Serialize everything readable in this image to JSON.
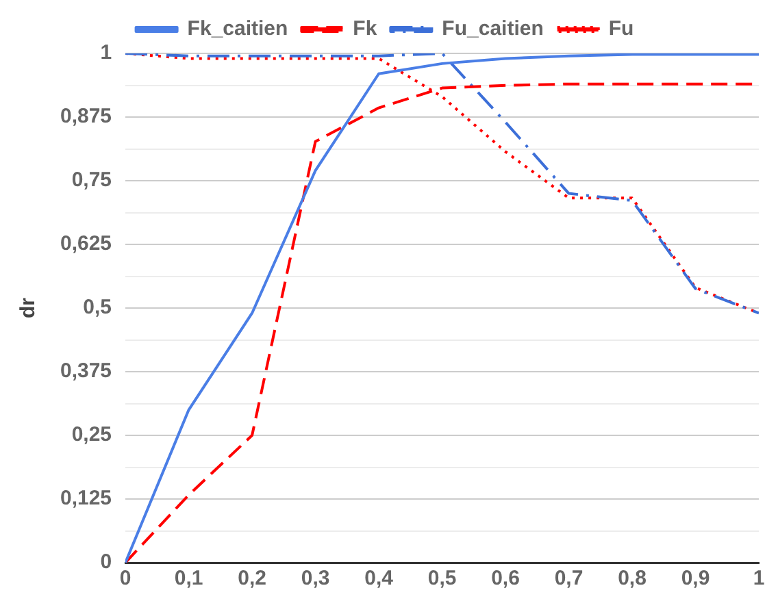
{
  "chart_data": {
    "type": "line",
    "ylabel": "dr",
    "legend": "top",
    "grid": "y",
    "marker": "none",
    "x": [
      0,
      0.1,
      0.2,
      0.3,
      0.4,
      0.5,
      0.6,
      0.7,
      0.8,
      0.9,
      1
    ],
    "xlim": [
      0,
      1
    ],
    "xticks": [
      0,
      {
        "value": 0.1,
        "label": "0,1"
      },
      {
        "value": 0.2,
        "label": "0,2"
      },
      {
        "value": 0.3,
        "label": "0,3"
      },
      {
        "value": 0.4,
        "label": "0,4"
      },
      {
        "value": 0.5,
        "label": "0,5"
      },
      {
        "value": 0.6,
        "label": "0,6"
      },
      {
        "value": 0.7,
        "label": "0,7"
      },
      {
        "value": 0.8,
        "label": "0,8"
      },
      {
        "value": 0.9,
        "label": "0,9"
      },
      1
    ],
    "ylim": [
      0,
      1
    ],
    "yticks": [
      0,
      {
        "value": 0.0625,
        "label": null
      },
      {
        "value": 0.125,
        "label": "0,125"
      },
      {
        "value": 0.1875,
        "label": null
      },
      {
        "value": 0.25,
        "label": "0,25"
      },
      {
        "value": 0.3125,
        "label": null
      },
      {
        "value": 0.375,
        "label": "0,375"
      },
      {
        "value": 0.4375,
        "label": null
      },
      {
        "value": 0.5,
        "label": "0,5"
      },
      {
        "value": 0.5625,
        "label": null
      },
      {
        "value": 0.625,
        "label": "0,625"
      },
      {
        "value": 0.6875,
        "label": null
      },
      {
        "value": 0.75,
        "label": "0,75"
      },
      {
        "value": 0.8125,
        "label": null
      },
      {
        "value": 0.875,
        "label": "0,875"
      },
      {
        "value": 0.9375,
        "label": null
      },
      1
    ],
    "series": [
      {
        "name": "Fk_caitien",
        "color": "#4a7ee6",
        "line_style": "solid",
        "values": [
          0,
          0.3,
          0.49,
          0.77,
          0.96,
          0.98,
          0.99,
          0.995,
          0.998,
          0.998,
          0.998
        ]
      },
      {
        "name": "Fk",
        "color": "#ff0000",
        "line_style": "dashed",
        "values": [
          0,
          0.133,
          0.25,
          0.827,
          0.893,
          0.932,
          0.937,
          0.94,
          0.94,
          0.94,
          0.94
        ]
      },
      {
        "name": "Fu_caitien",
        "color": "#3c6fd8",
        "line_style": "dashdot",
        "values": [
          1,
          0.995,
          0.995,
          0.995,
          0.995,
          1,
          0.865,
          0.725,
          0.711,
          0.538,
          0.49
        ]
      },
      {
        "name": "Fu",
        "color": "#ff0000",
        "line_style": "dotted",
        "values": [
          1,
          0.99,
          0.99,
          0.99,
          0.99,
          0.915,
          0.807,
          0.716,
          0.716,
          0.54,
          0.49
        ]
      }
    ]
  }
}
